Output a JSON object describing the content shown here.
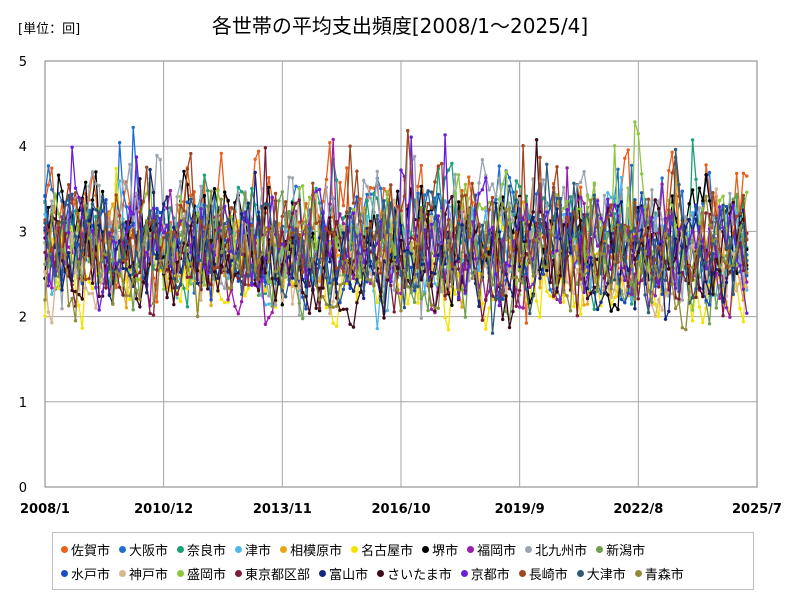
{
  "unit_label": "[単位：回]",
  "chart_data": {
    "type": "line",
    "title": "各世帯の平均支出頻度[2008/1～2025/4]",
    "xlabel": "",
    "ylabel": "",
    "ylim": [
      0,
      5
    ],
    "y_ticks": [
      0,
      1,
      2,
      3,
      4,
      5
    ],
    "x_start": "2008/1",
    "x_end": "2025/7",
    "x_ticks": [
      "2008/1",
      "2010/12",
      "2013/11",
      "2016/10",
      "2019/9",
      "2022/8",
      "2025/7"
    ],
    "grid": true,
    "legend_position": "bottom",
    "series": [
      {
        "name": "佐賀市",
        "color": "#E8601C",
        "base": 3.1,
        "amp": 0.55
      },
      {
        "name": "大阪市",
        "color": "#1F6FD1",
        "base": 3.0,
        "amp": 0.5
      },
      {
        "name": "奈良市",
        "color": "#1BA078",
        "base": 2.9,
        "amp": 0.45
      },
      {
        "name": "津市",
        "color": "#4DB8E8",
        "base": 2.8,
        "amp": 0.45
      },
      {
        "name": "相模原市",
        "color": "#E8A317",
        "base": 2.7,
        "amp": 0.4
      },
      {
        "name": "名古屋市",
        "color": "#F2E300",
        "base": 2.5,
        "amp": 0.4
      },
      {
        "name": "堺市",
        "color": "#000000",
        "base": 2.9,
        "amp": 0.55
      },
      {
        "name": "福岡市",
        "color": "#9A1FA8",
        "base": 2.7,
        "amp": 0.45
      },
      {
        "name": "北九州市",
        "color": "#9BA4AF",
        "base": 3.0,
        "amp": 0.6
      },
      {
        "name": "新潟市",
        "color": "#6FA04F",
        "base": 2.7,
        "amp": 0.45
      },
      {
        "name": "水戸市",
        "color": "#1D4FC4",
        "base": 2.8,
        "amp": 0.5
      },
      {
        "name": "神戸市",
        "color": "#D9B48C",
        "base": 2.7,
        "amp": 0.45
      },
      {
        "name": "盛岡市",
        "color": "#8DC63F",
        "base": 2.9,
        "amp": 0.5
      },
      {
        "name": "東京都区部",
        "color": "#7B1E3C",
        "base": 2.6,
        "amp": 0.4
      },
      {
        "name": "富山市",
        "color": "#14267A",
        "base": 2.7,
        "amp": 0.45
      },
      {
        "name": "さいたま市",
        "color": "#3D0A1A",
        "base": 2.6,
        "amp": 0.45
      },
      {
        "name": "京都市",
        "color": "#6A1FD8",
        "base": 2.8,
        "amp": 0.45
      },
      {
        "name": "長崎市",
        "color": "#A0471F",
        "base": 3.0,
        "amp": 0.5
      },
      {
        "name": "大津市",
        "color": "#2E5B7A",
        "base": 2.8,
        "amp": 0.45
      },
      {
        "name": "青森市",
        "color": "#8F8B3A",
        "base": 2.6,
        "amp": 0.45
      }
    ]
  }
}
